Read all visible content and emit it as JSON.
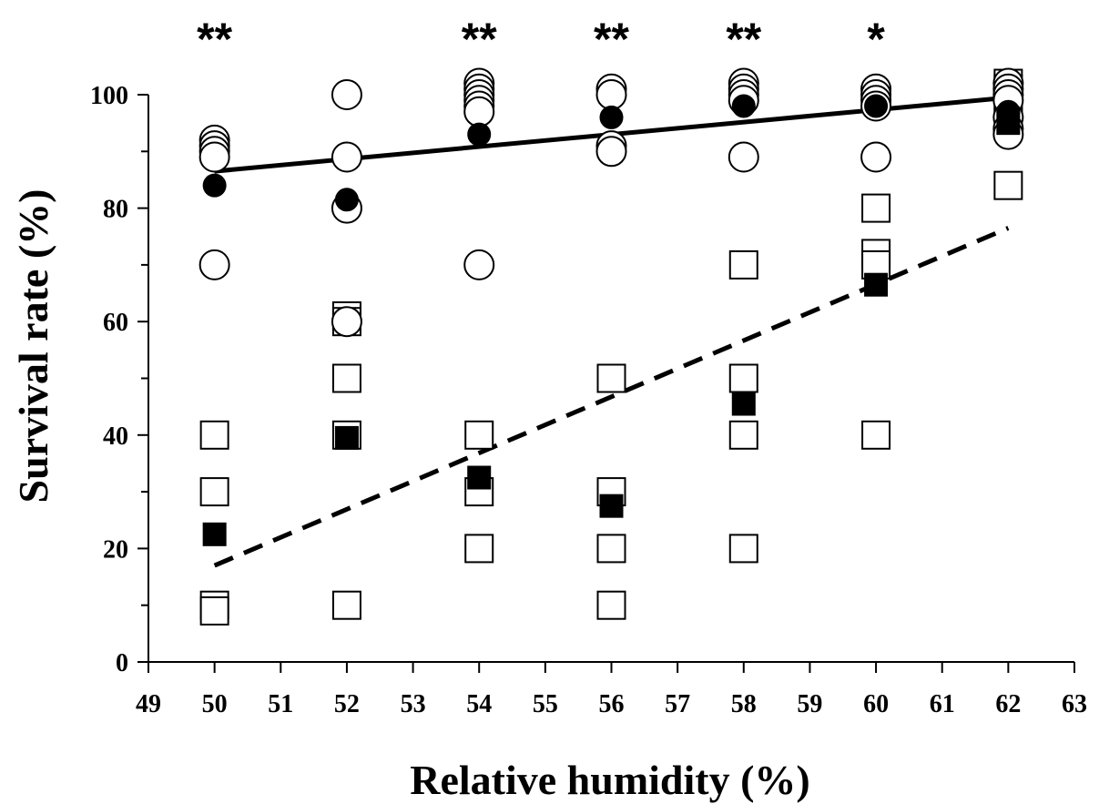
{
  "chart_data": {
    "type": "scatter",
    "title": "",
    "xlabel": "Relative humidity (%)",
    "ylabel": "Survival rate (%)",
    "xlim": [
      49,
      63
    ],
    "ylim": [
      0,
      100
    ],
    "xticks": [
      "49",
      "50",
      "51",
      "52",
      "53",
      "54",
      "55",
      "56",
      "57",
      "58",
      "59",
      "60",
      "61",
      "62",
      "63"
    ],
    "yticks": [
      "0",
      "20",
      "40",
      "60",
      "80",
      "100"
    ],
    "grid": false,
    "legend": "none",
    "significance": [
      {
        "x": 50,
        "label": "**"
      },
      {
        "x": 54,
        "label": "**"
      },
      {
        "x": 56,
        "label": "**"
      },
      {
        "x": 58,
        "label": "**"
      },
      {
        "x": 60,
        "label": "*"
      }
    ],
    "series": [
      {
        "marker": "open-circle",
        "points": [
          [
            50,
            92
          ],
          [
            50,
            91
          ],
          [
            50,
            90
          ],
          [
            50,
            89
          ],
          [
            50,
            70
          ],
          [
            52,
            100
          ],
          [
            52,
            89
          ],
          [
            52,
            80
          ],
          [
            52,
            60
          ],
          [
            54,
            102
          ],
          [
            54,
            101
          ],
          [
            54,
            100
          ],
          [
            54,
            99
          ],
          [
            54,
            98
          ],
          [
            54,
            97
          ],
          [
            54,
            70
          ],
          [
            56,
            101
          ],
          [
            56,
            100
          ],
          [
            56,
            91
          ],
          [
            56,
            90
          ],
          [
            58,
            102
          ],
          [
            58,
            101
          ],
          [
            58,
            100
          ],
          [
            58,
            99
          ],
          [
            58,
            89
          ],
          [
            60,
            101
          ],
          [
            60,
            100
          ],
          [
            60,
            99
          ],
          [
            60,
            98
          ],
          [
            60,
            89
          ],
          [
            62,
            102
          ],
          [
            62,
            101
          ],
          [
            62,
            100
          ],
          [
            62,
            99
          ],
          [
            62,
            96
          ],
          [
            62,
            94
          ],
          [
            62,
            93
          ]
        ]
      },
      {
        "marker": "filled-circle",
        "points": [
          [
            50,
            84
          ],
          [
            52,
            81.5
          ],
          [
            54,
            93
          ],
          [
            56,
            96
          ],
          [
            58,
            98
          ],
          [
            60,
            98
          ],
          [
            62,
            97
          ]
        ]
      },
      {
        "marker": "open-square",
        "points": [
          [
            50,
            40
          ],
          [
            50,
            30
          ],
          [
            50,
            10
          ],
          [
            50,
            9
          ],
          [
            52,
            61
          ],
          [
            52,
            60
          ],
          [
            52,
            50
          ],
          [
            52,
            40
          ],
          [
            52,
            10
          ],
          [
            54,
            40
          ],
          [
            54,
            30
          ],
          [
            54,
            20
          ],
          [
            56,
            50
          ],
          [
            56,
            30
          ],
          [
            56,
            20
          ],
          [
            56,
            10
          ],
          [
            58,
            70
          ],
          [
            58,
            50
          ],
          [
            58,
            40
          ],
          [
            58,
            20
          ],
          [
            60,
            80
          ],
          [
            60,
            72
          ],
          [
            60,
            70
          ],
          [
            60,
            40
          ],
          [
            62,
            102
          ],
          [
            62,
            101
          ],
          [
            62,
            100
          ],
          [
            62,
            98
          ],
          [
            62,
            95
          ],
          [
            62,
            84
          ]
        ]
      },
      {
        "marker": "filled-square",
        "points": [
          [
            50,
            22.5
          ],
          [
            52,
            39.5
          ],
          [
            54,
            32.5
          ],
          [
            56,
            27.5
          ],
          [
            58,
            45.5
          ],
          [
            60,
            66.5
          ],
          [
            62,
            95
          ]
        ]
      }
    ],
    "trendlines": [
      {
        "style": "solid",
        "from": [
          50,
          86.5
        ],
        "to": [
          62,
          99.5
        ]
      },
      {
        "style": "dashed",
        "from": [
          50,
          17
        ],
        "to": [
          62,
          76.5
        ]
      }
    ]
  },
  "colors": {
    "ink": "#000000",
    "background": "#ffffff"
  }
}
